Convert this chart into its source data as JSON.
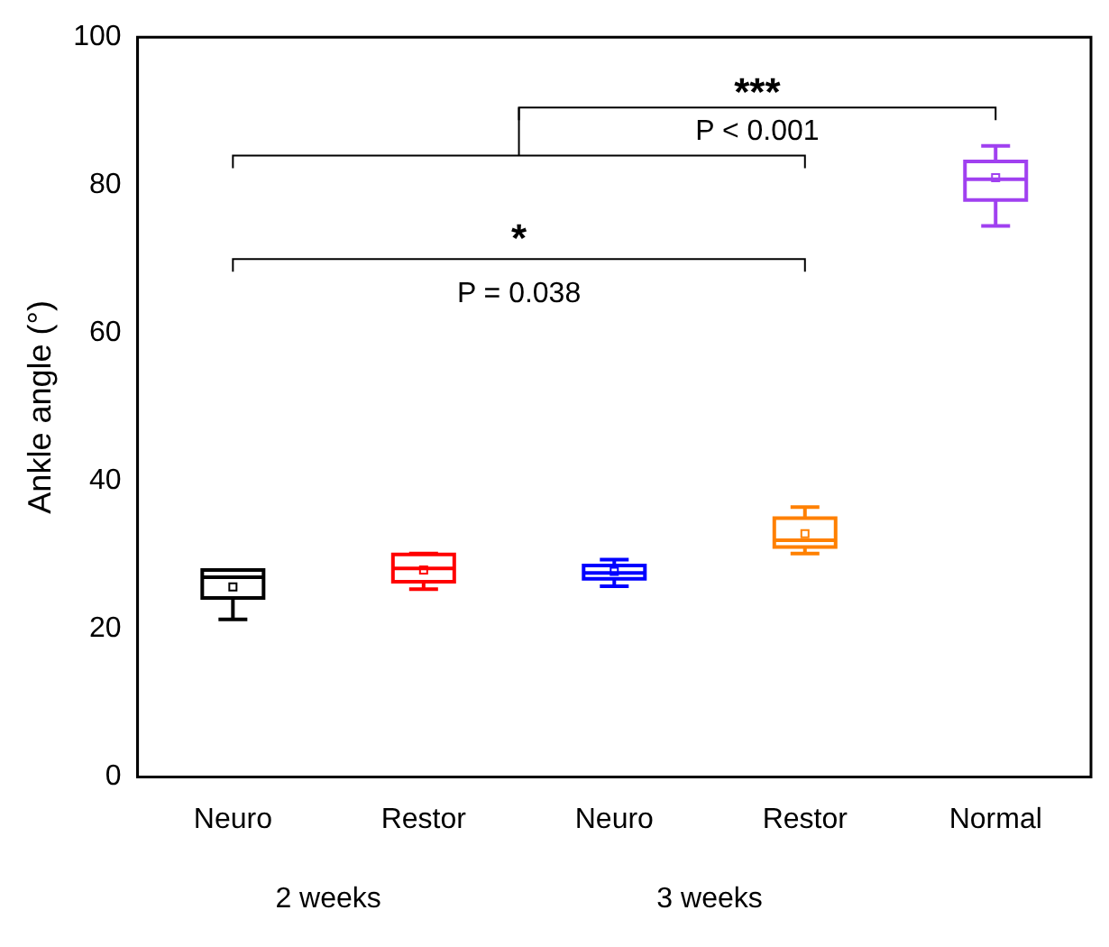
{
  "chart_data": {
    "type": "box",
    "ylabel": "Ankle angle (°)",
    "categories": [
      "Neuro",
      "Restor",
      "Neuro",
      "Restor",
      "Normal"
    ],
    "colors": [
      "#000000",
      "#ff0000",
      "#0000ff",
      "#ff8000",
      "#a040f0"
    ],
    "boxes": [
      {
        "low": 21.3,
        "q1": 24.2,
        "median": 27.0,
        "q3": 28.0,
        "high": 28.0,
        "mean": 25.7
      },
      {
        "low": 25.4,
        "q1": 26.4,
        "median": 28.2,
        "q3": 30.1,
        "high": 30.2,
        "mean": 28.0
      },
      {
        "low": 25.8,
        "q1": 26.8,
        "median": 27.6,
        "q3": 28.6,
        "high": 29.4,
        "mean": 27.8
      },
      {
        "low": 30.2,
        "q1": 31.1,
        "median": 32.0,
        "q3": 35.0,
        "high": 36.5,
        "mean": 32.9
      },
      {
        "low": 74.5,
        "q1": 78.0,
        "median": 80.8,
        "q3": 83.2,
        "high": 85.3,
        "mean": 81.0
      }
    ],
    "ylim": [
      0,
      100
    ],
    "yticks": [
      0,
      20,
      40,
      60,
      80,
      100
    ],
    "grid": false,
    "legend": false,
    "annotations": [
      "*",
      "P = 0.038",
      "***",
      "P < 0.001",
      "2 weeks",
      "3 weeks"
    ]
  }
}
